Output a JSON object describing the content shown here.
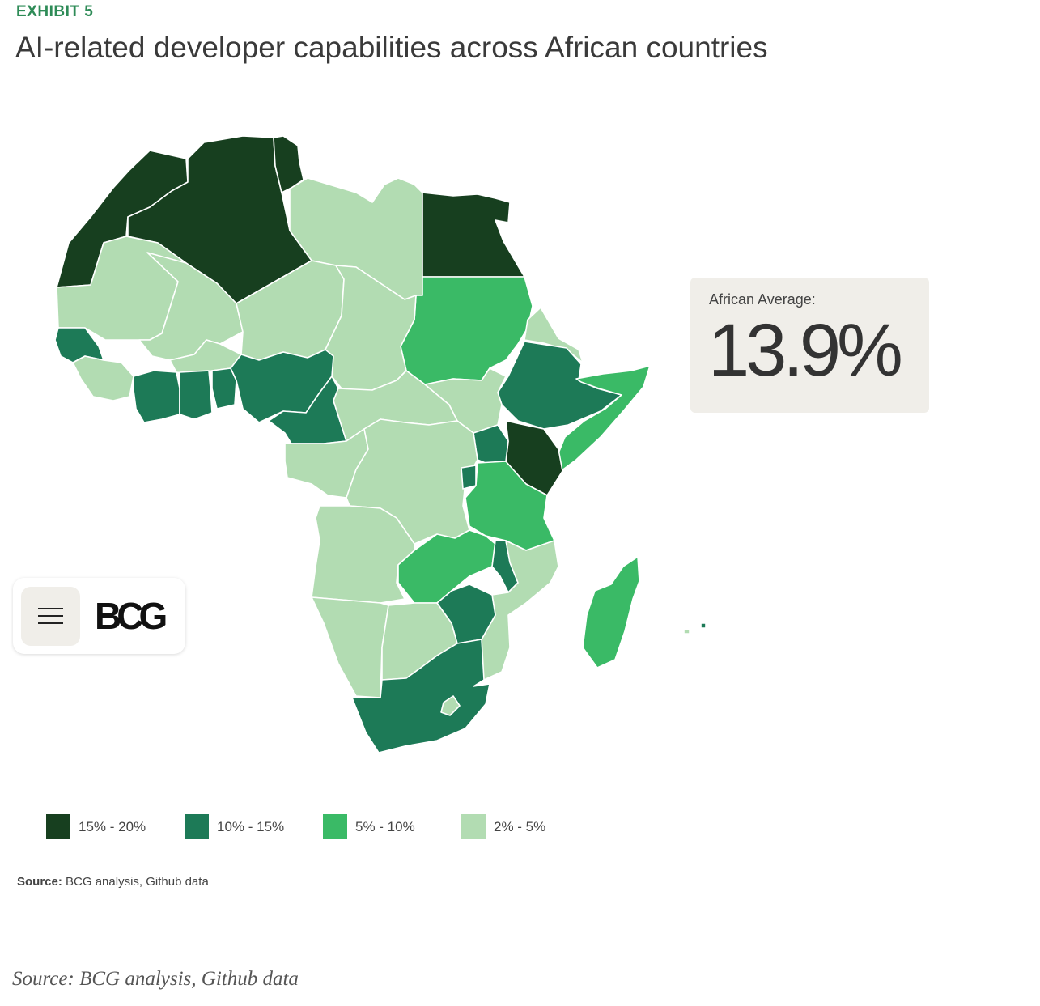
{
  "header": {
    "exhibit": "EXHIBIT 5",
    "title": "AI-related developer capabilities across African countries"
  },
  "average": {
    "label": "African Average:",
    "value": "13.9%"
  },
  "colors": {
    "tier_15_20": "#173f1f",
    "tier_10_15": "#1d7a57",
    "tier_5_10": "#3aba66",
    "tier_2_5": "#b2dcb2"
  },
  "legend": [
    {
      "label": "15% - 20%",
      "color": "#173f1f"
    },
    {
      "label": "10% - 15%",
      "color": "#1d7a57"
    },
    {
      "label": "5% - 10%",
      "color": "#3aba66"
    },
    {
      "label": "2% - 5%",
      "color": "#b2dcb2"
    }
  ],
  "source": {
    "prefix": "Source:",
    "text": "BCG analysis, Github data",
    "caption": "Source: BCG analysis, Github data"
  },
  "nav": {
    "menu_icon": "hamburger-menu-icon",
    "logo": "BCG"
  }
}
